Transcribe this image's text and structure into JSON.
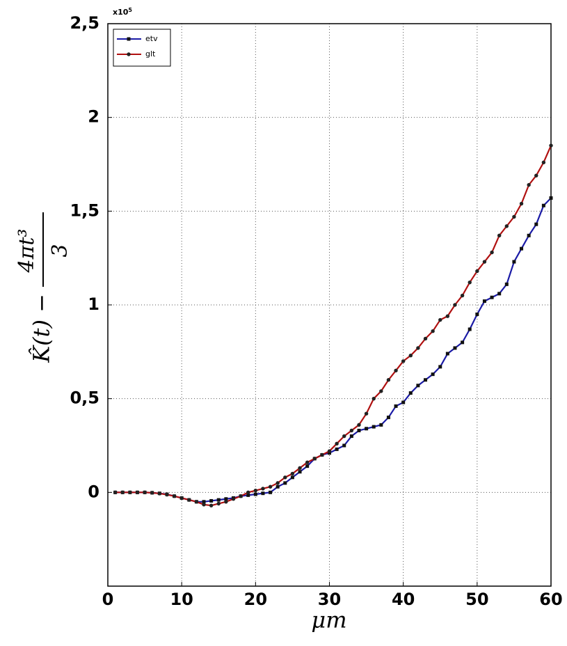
{
  "chart_data": {
    "type": "line",
    "xlabel": "μm",
    "ylabel_lhs": "K̂(t) −",
    "ylabel_numerator": "4πt³",
    "ylabel_denominator": "3",
    "y_multiplier_base": "x10",
    "y_multiplier_exponent": "5",
    "x": [
      1,
      2,
      3,
      4,
      5,
      6,
      7,
      8,
      9,
      10,
      11,
      12,
      13,
      14,
      15,
      16,
      17,
      18,
      19,
      20,
      21,
      22,
      23,
      24,
      25,
      26,
      27,
      28,
      29,
      30,
      31,
      32,
      33,
      34,
      35,
      36,
      37,
      38,
      39,
      40,
      41,
      42,
      43,
      44,
      45,
      46,
      47,
      48,
      49,
      50,
      51,
      52,
      53,
      54,
      55,
      56,
      57,
      58,
      59,
      60
    ],
    "series": [
      {
        "name": "etv",
        "color": "#1a1aa6",
        "marker": "square",
        "values": [
          0,
          0,
          0,
          0,
          0,
          -0.002,
          -0.005,
          -0.01,
          -0.02,
          -0.03,
          -0.04,
          -0.05,
          -0.05,
          -0.045,
          -0.04,
          -0.035,
          -0.03,
          -0.02,
          -0.015,
          -0.01,
          -0.005,
          0,
          0.03,
          0.05,
          0.08,
          0.11,
          0.14,
          0.18,
          0.2,
          0.21,
          0.23,
          0.25,
          0.3,
          0.33,
          0.34,
          0.35,
          0.36,
          0.4,
          0.46,
          0.48,
          0.53,
          0.57,
          0.6,
          0.63,
          0.67,
          0.74,
          0.77,
          0.8,
          0.87,
          0.95,
          1.02,
          1.04,
          1.06,
          1.11,
          1.23,
          1.3,
          1.37,
          1.43,
          1.53,
          1.57
        ]
      },
      {
        "name": "glt",
        "color": "#b01010",
        "marker": "circle",
        "values": [
          0,
          0,
          0,
          0,
          0,
          -0.002,
          -0.006,
          -0.012,
          -0.02,
          -0.03,
          -0.04,
          -0.05,
          -0.065,
          -0.07,
          -0.06,
          -0.05,
          -0.035,
          -0.02,
          0,
          0.01,
          0.02,
          0.03,
          0.05,
          0.08,
          0.1,
          0.13,
          0.16,
          0.18,
          0.2,
          0.22,
          0.26,
          0.3,
          0.33,
          0.36,
          0.42,
          0.5,
          0.54,
          0.6,
          0.65,
          0.7,
          0.73,
          0.77,
          0.82,
          0.86,
          0.92,
          0.94,
          1,
          1.05,
          1.12,
          1.18,
          1.23,
          1.28,
          1.37,
          1.42,
          1.47,
          1.54,
          1.64,
          1.69,
          1.76,
          1.85
        ]
      }
    ],
    "xlim": [
      0,
      60
    ],
    "xticks": [
      0,
      10,
      20,
      30,
      40,
      50,
      60
    ],
    "ylim": [
      -0.5,
      2.5
    ],
    "yticks": [
      0,
      {
        "value": 0.5,
        "label": "0,5"
      },
      1,
      {
        "value": 1.5,
        "label": "1,5"
      },
      2,
      {
        "value": 2.5,
        "label": "2,5"
      }
    ],
    "grid": true,
    "legend": "upper left"
  }
}
